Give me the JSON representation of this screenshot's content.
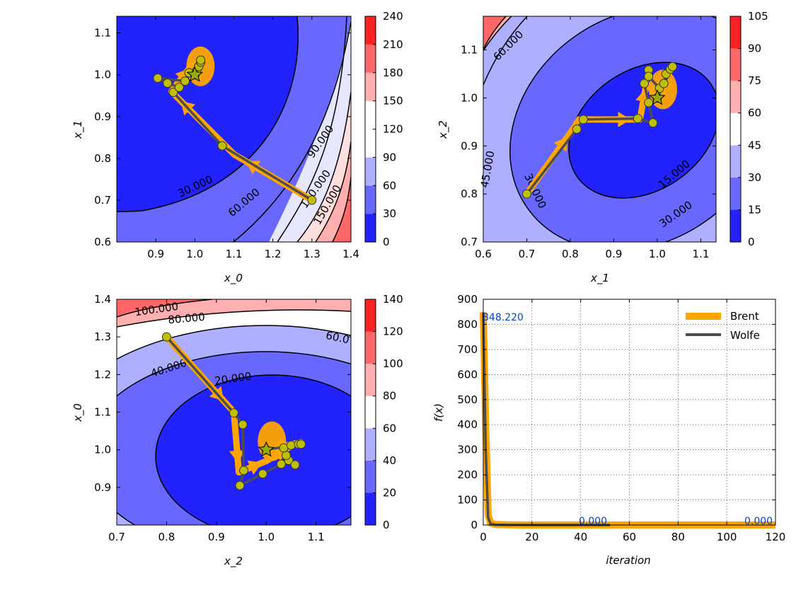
{
  "colors": {
    "optimizer_brent": "#ffa500",
    "optimizer_wolfe": "#4d4d4d",
    "marker_fill": "#bfbf00",
    "star_fill": "#9aa800",
    "annotation_text": "#0044dd",
    "colormap": [
      "#2222ff",
      "#6868ff",
      "#afafff",
      "#ffffff",
      "#ffafaf",
      "#ff6868",
      "#ff2222"
    ]
  },
  "chart_data": [
    {
      "type": "contour",
      "name": "contour-x0-x1",
      "xlabel": "x_0",
      "ylabel": "x_1",
      "xlim": [
        0.8,
        1.4
      ],
      "ylim": [
        0.6,
        1.14
      ],
      "xticks": [
        "0.9",
        "1.0",
        "1.1",
        "1.2",
        "1.3",
        "1.4"
      ],
      "yticks": [
        "0.6",
        "0.7",
        "0.8",
        "0.9",
        "1.0",
        "1.1"
      ],
      "colorbar": {
        "min": 0,
        "max": 240,
        "ticks": [
          "0",
          "30",
          "60",
          "90",
          "120",
          "150",
          "180",
          "210",
          "240"
        ]
      },
      "contour_labels": [
        "30.000",
        "60.000",
        "90.000",
        "120.000",
        "150.000"
      ],
      "minimum": [
        1.0,
        1.0
      ],
      "brent_path": [
        [
          1.3,
          0.7
        ],
        [
          1.1,
          0.81
        ],
        [
          0.94,
          0.96
        ],
        [
          0.96,
          0.985
        ],
        [
          0.99,
          1.02
        ],
        [
          1.01,
          1.03
        ],
        [
          1.0,
          1.0
        ]
      ],
      "wolfe_path": [
        [
          1.3,
          0.7
        ],
        [
          1.07,
          0.83
        ],
        [
          0.945,
          0.958
        ],
        [
          0.96,
          0.97
        ],
        [
          0.93,
          0.98
        ],
        [
          0.905,
          0.992
        ],
        [
          0.975,
          0.985
        ],
        [
          0.985,
          1.005
        ],
        [
          1.005,
          1.01
        ],
        [
          1.01,
          1.02
        ],
        [
          1.015,
          1.03
        ],
        [
          1.015,
          1.035
        ],
        [
          1.0,
          1.0
        ]
      ]
    },
    {
      "type": "contour",
      "name": "contour-x1-x2",
      "xlabel": "x_1",
      "ylabel": "x_2",
      "xlim": [
        0.6,
        1.135
      ],
      "ylim": [
        0.7,
        1.17
      ],
      "xticks": [
        "0.6",
        "0.7",
        "0.8",
        "0.9",
        "1.0",
        "1.1"
      ],
      "yticks": [
        "0.7",
        "0.8",
        "0.9",
        "1.0",
        "1.1"
      ],
      "colorbar": {
        "min": 0,
        "max": 105,
        "ticks": [
          "0",
          "15",
          "30",
          "45",
          "60",
          "75",
          "90",
          "105"
        ]
      },
      "contour_labels": [
        "60.000",
        "45.000",
        "30.000",
        "15.000",
        "30.000"
      ],
      "minimum": [
        1.0,
        1.0
      ],
      "brent_path": [
        [
          0.7,
          0.8
        ],
        [
          0.81,
          0.94
        ],
        [
          0.82,
          0.955
        ],
        [
          0.96,
          0.955
        ],
        [
          0.975,
          1.03
        ],
        [
          1.0,
          1.005
        ],
        [
          1.02,
          1.04
        ],
        [
          1.03,
          1.06
        ],
        [
          1.0,
          1.0
        ]
      ],
      "wolfe_path": [
        [
          0.7,
          0.8
        ],
        [
          0.815,
          0.935
        ],
        [
          0.83,
          0.955
        ],
        [
          0.955,
          0.957
        ],
        [
          0.99,
          0.948
        ],
        [
          0.98,
          0.99
        ],
        [
          0.97,
          1.03
        ],
        [
          0.98,
          1.058
        ],
        [
          0.98,
          1.045
        ],
        [
          1.005,
          1.02
        ],
        [
          1.015,
          1.03
        ],
        [
          1.02,
          1.05
        ],
        [
          1.03,
          1.06
        ],
        [
          1.035,
          1.065
        ],
        [
          1.0,
          1.0
        ]
      ]
    },
    {
      "type": "contour",
      "name": "contour-x2-x0",
      "xlabel": "x_2",
      "ylabel": "x_0",
      "xlim": [
        0.7,
        1.17
      ],
      "ylim": [
        0.8,
        1.4
      ],
      "xticks": [
        "0.7",
        "0.8",
        "0.9",
        "1.0",
        "1.1"
      ],
      "yticks": [
        "0.9",
        "1.0",
        "1.1",
        "1.2",
        "1.3",
        "1.4"
      ],
      "colorbar": {
        "min": 0,
        "max": 140,
        "ticks": [
          "0",
          "20",
          "40",
          "60",
          "80",
          "100",
          "120",
          "140"
        ]
      },
      "contour_labels": [
        "100.000",
        "80.000",
        "60.0",
        "40.000",
        "20.000"
      ],
      "minimum": [
        1.0,
        1.0
      ],
      "brent_path": [
        [
          0.8,
          1.3
        ],
        [
          0.935,
          1.1
        ],
        [
          0.945,
          0.94
        ],
        [
          1.0,
          0.97
        ],
        [
          1.05,
          1.01
        ],
        [
          1.07,
          1.02
        ],
        [
          1.0,
          1.0
        ]
      ],
      "wolfe_path": [
        [
          0.8,
          1.3
        ],
        [
          0.935,
          1.098
        ],
        [
          0.953,
          1.067
        ],
        [
          0.955,
          0.945
        ],
        [
          0.947,
          0.905
        ],
        [
          0.993,
          0.936
        ],
        [
          1.03,
          0.962
        ],
        [
          1.045,
          0.972
        ],
        [
          1.058,
          0.96
        ],
        [
          1.04,
          0.985
        ],
        [
          1.035,
          1.005
        ],
        [
          1.05,
          1.012
        ],
        [
          1.065,
          1.015
        ],
        [
          1.07,
          1.015
        ],
        [
          1.0,
          1.0
        ]
      ]
    },
    {
      "type": "line",
      "name": "convergence",
      "xlabel": "iteration",
      "ylabel": "f(x)",
      "xlim": [
        0,
        120
      ],
      "ylim": [
        0,
        900
      ],
      "xticks": [
        "0",
        "20",
        "40",
        "60",
        "80",
        "100",
        "120"
      ],
      "yticks": [
        "0",
        "100",
        "200",
        "300",
        "400",
        "500",
        "600",
        "700",
        "800",
        "900"
      ],
      "grid": true,
      "legend_position": "top-right",
      "series": [
        {
          "name": "Brent",
          "x": [
            0,
            1,
            2,
            3,
            5,
            10,
            20,
            40,
            60,
            80,
            100,
            120
          ],
          "y": [
            848.22,
            400,
            40,
            8,
            2,
            0.5,
            0,
            0,
            0,
            0,
            0,
            0
          ]
        },
        {
          "name": "Wolfe",
          "x": [
            0,
            1,
            2,
            3,
            5,
            10,
            20,
            30,
            40,
            52
          ],
          "y": [
            848.22,
            300,
            30,
            5,
            1,
            0.2,
            0,
            0,
            0,
            0
          ]
        }
      ],
      "annotations": [
        "848.220",
        "0.000",
        "0.000"
      ]
    }
  ]
}
